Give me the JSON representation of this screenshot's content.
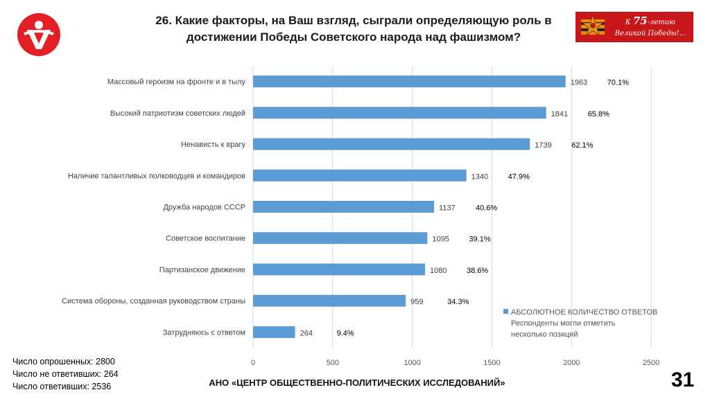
{
  "header": {
    "title_line1": "26. Какие факторы, на Ваш взгляд, сыграли определяющую роль в",
    "title_line2": "достижении Победы Советского народа над фашизмом?"
  },
  "banner": {
    "text_prefix": "К ",
    "text_num": "75",
    "text_suffix": "-летию",
    "text_line2": "Великой Победы!..."
  },
  "colors": {
    "bar": "#5b9bd5",
    "banner": "#c8171a",
    "logo": "#e31e24"
  },
  "chart_data": {
    "type": "bar",
    "orientation": "horizontal",
    "categories": [
      "Массовый героизм на фронте и в тылу",
      "Высокий патриотизм советских людей",
      "Ненависть к врагу",
      "Наличие талантливых полководцев и командиров",
      "Дружба народов СССР",
      "Советское воспитание",
      "Партизанское движение",
      "Система обороны, созданная руководством страны",
      "Затрудняюсь с ответом"
    ],
    "values": [
      1963,
      1841,
      1739,
      1340,
      1137,
      1095,
      1080,
      959,
      264
    ],
    "percent_labels": [
      "70.1%",
      "65.8%",
      "62.1%",
      "47.9%",
      "40.6%",
      "39.1%",
      "38.6%",
      "34.3%",
      "9.4%"
    ],
    "xlim": [
      0,
      2500
    ],
    "xticks": [
      0,
      500,
      1000,
      1500,
      2000,
      2500
    ],
    "grid": true,
    "legend": {
      "series_name": "АБСОЛЮТНОЕ КОЛИЧЕСТВО ОТВЕТОВ",
      "note_line1": "Респонденты могли отметить",
      "note_line2": "несколько позиций",
      "placement": "bottom-right"
    }
  },
  "stats": {
    "surveyed": "Число опрошенных: 2800",
    "not_answered": "Число не ответивших: 264",
    "answered": "Число ответивших: 2536"
  },
  "footer": {
    "org": "АНО «ЦЕНТР ОБЩЕСТВЕННО-ПОЛИТИЧЕСКИХ ИССЛЕДОВАНИЙ»"
  },
  "page": {
    "number": "31"
  }
}
